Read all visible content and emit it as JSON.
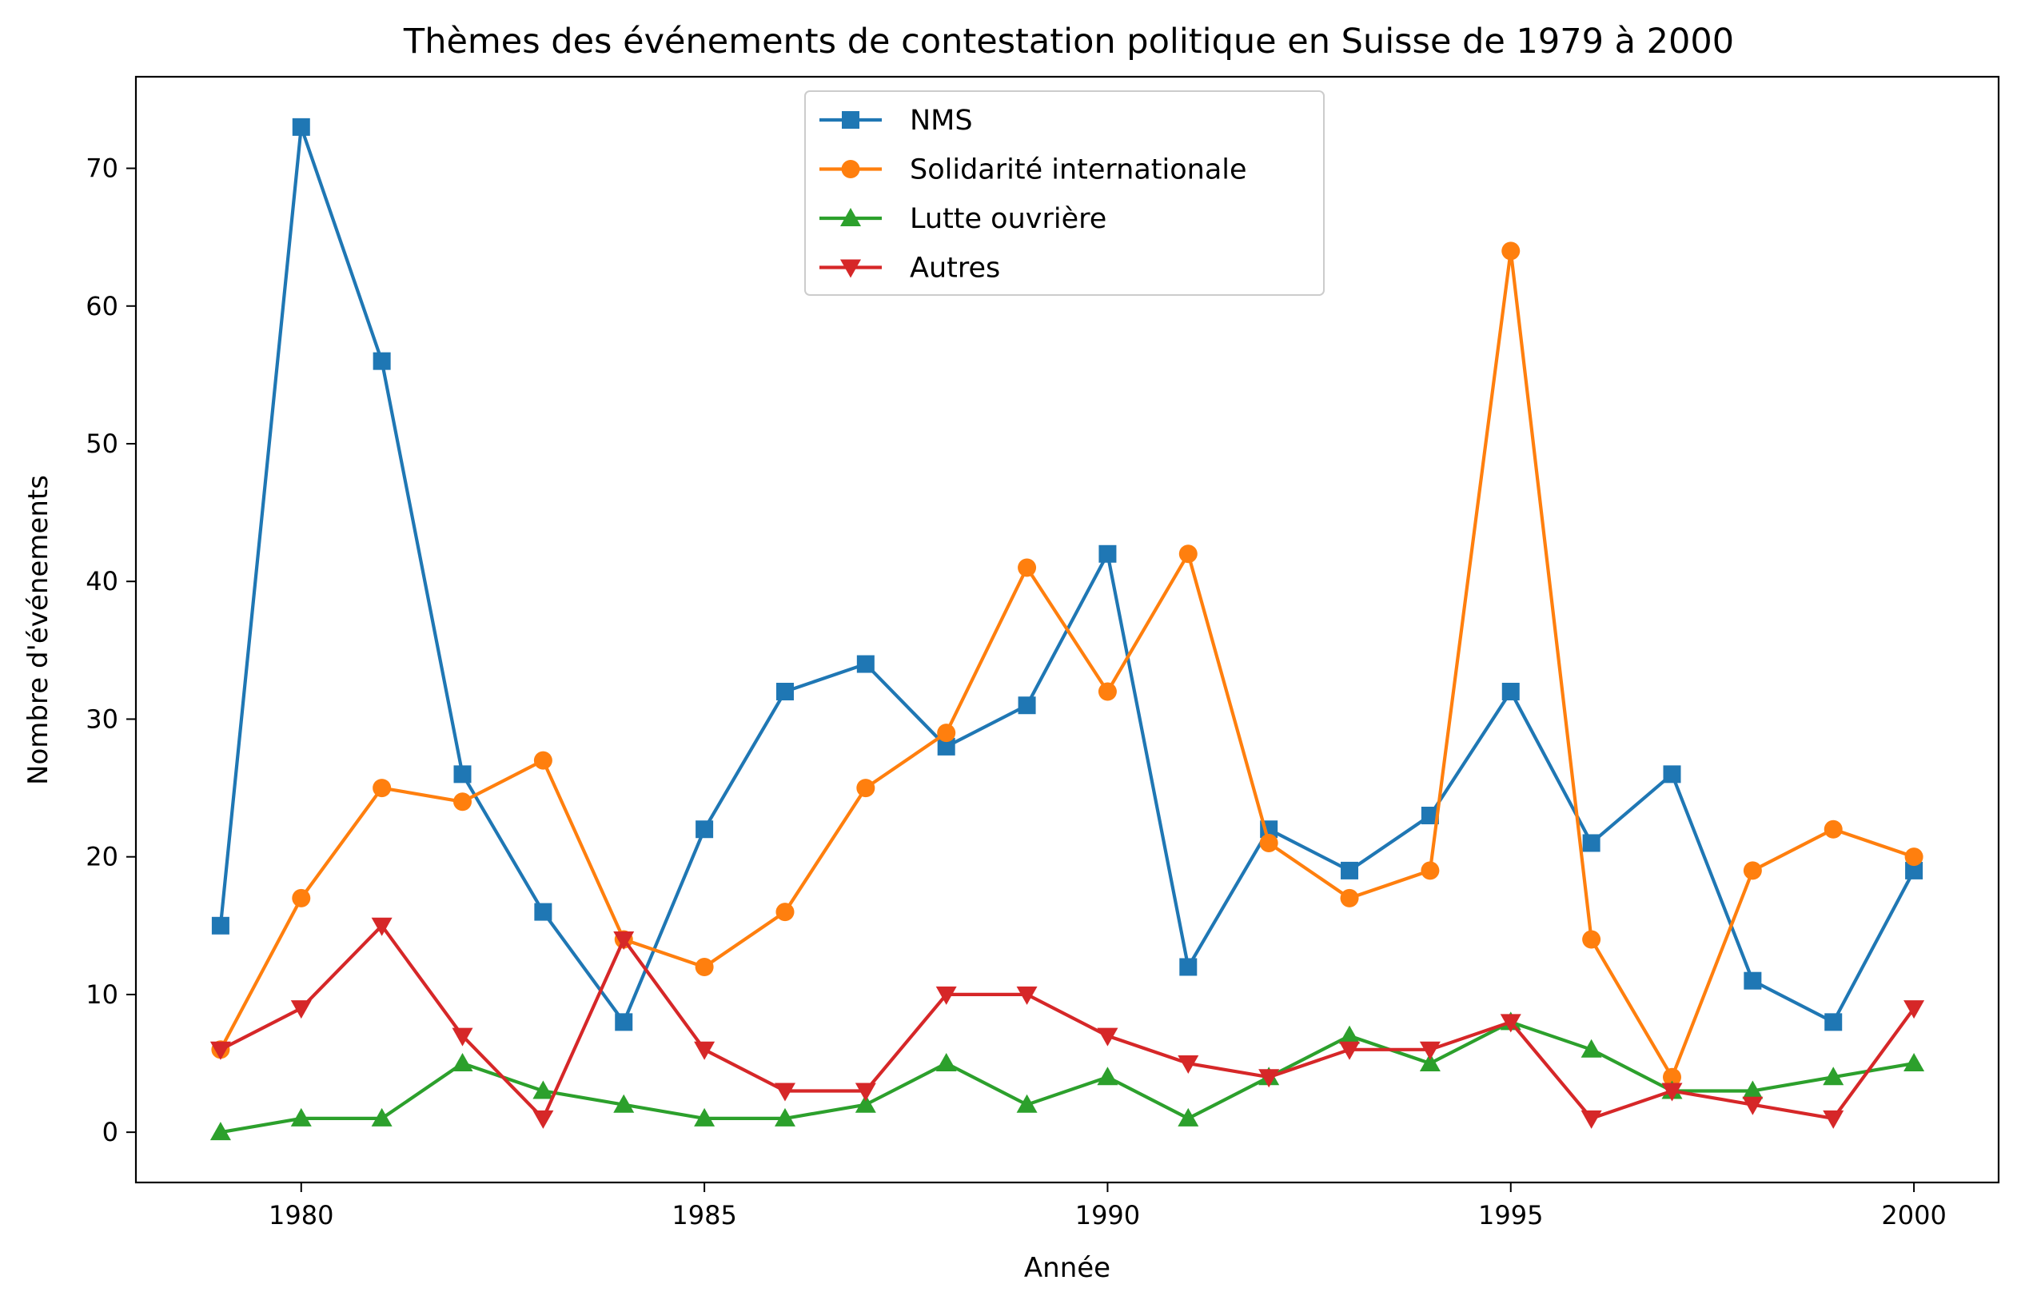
{
  "chart_data": {
    "type": "line",
    "title": "Thèmes des événements de contestation politique en Suisse de 1979 à 2000",
    "xlabel": "Année",
    "ylabel": "Nombre d'événements",
    "xlim": [
      1977.95,
      2001.05
    ],
    "ylim": [
      -3.65,
      76.65
    ],
    "x_ticks": [
      1980,
      1985,
      1990,
      1995,
      2000
    ],
    "y_ticks": [
      0,
      10,
      20,
      30,
      40,
      50,
      60,
      70
    ],
    "grid": false,
    "legend_position": "top-center",
    "x": [
      1979,
      1980,
      1981,
      1982,
      1983,
      1984,
      1985,
      1986,
      1987,
      1988,
      1989,
      1990,
      1991,
      1992,
      1993,
      1994,
      1995,
      1996,
      1997,
      1998,
      1999,
      2000
    ],
    "series": [
      {
        "name": "NMS",
        "color": "#1f77b4",
        "marker": "square",
        "values": [
          15,
          73,
          56,
          26,
          16,
          8,
          22,
          32,
          34,
          28,
          31,
          42,
          12,
          22,
          19,
          23,
          32,
          21,
          26,
          11,
          8,
          19
        ]
      },
      {
        "name": "Solidarité internationale",
        "color": "#ff7f0e",
        "marker": "circle",
        "values": [
          6,
          17,
          25,
          24,
          27,
          14,
          12,
          16,
          25,
          29,
          41,
          32,
          42,
          21,
          17,
          19,
          64,
          14,
          4,
          19,
          22,
          20
        ]
      },
      {
        "name": "Lutte ouvrière",
        "color": "#2ca02c",
        "marker": "triangle-up",
        "values": [
          0,
          1,
          1,
          5,
          3,
          2,
          1,
          1,
          2,
          5,
          2,
          4,
          1,
          4,
          7,
          5,
          8,
          6,
          3,
          3,
          4,
          5
        ]
      },
      {
        "name": "Autres",
        "color": "#d62728",
        "marker": "triangle-down",
        "values": [
          6,
          9,
          15,
          7,
          1,
          14,
          6,
          3,
          3,
          10,
          10,
          7,
          5,
          4,
          6,
          6,
          8,
          1,
          3,
          2,
          1,
          9
        ]
      }
    ]
  }
}
